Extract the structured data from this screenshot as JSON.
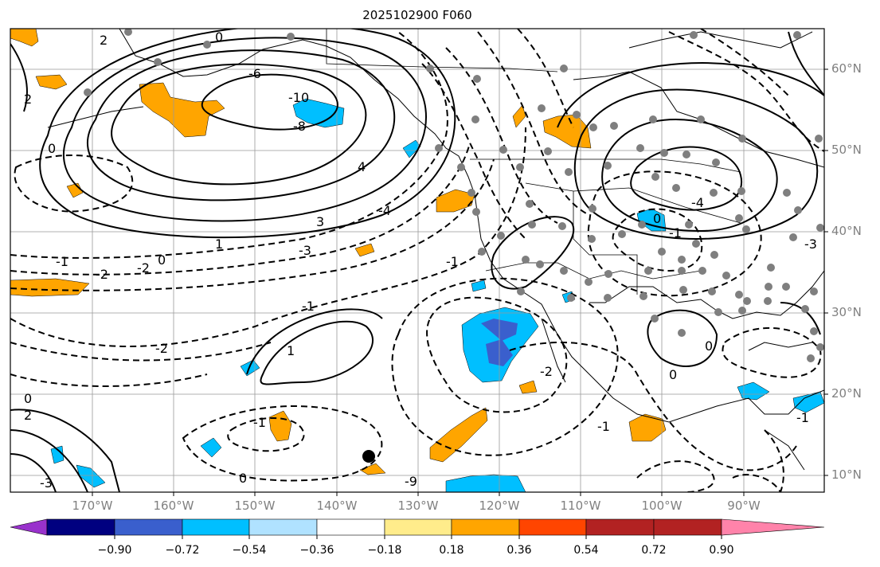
{
  "title": "2025102900 F060",
  "lat_labels": [
    "60°N",
    "50°N",
    "40°N",
    "30°N",
    "20°N",
    "10°N"
  ],
  "lon_labels": [
    "170°W",
    "160°W",
    "150°W",
    "140°W",
    "130°W",
    "120°W",
    "110°W",
    "100°W",
    "90°W"
  ],
  "contour_labels": [
    "0",
    "-1",
    "-2",
    "-3",
    "-4",
    "-6",
    "-8",
    "-9",
    "-10",
    "2",
    "4",
    "1",
    "0",
    "-2",
    "-1",
    "0",
    "1",
    "-1",
    "-4",
    "0",
    "-1",
    "0",
    "-3",
    "2",
    "3",
    "-1",
    "0",
    "-2",
    "0",
    "-1",
    "-1",
    "0",
    "2",
    "-2",
    "-3"
  ],
  "colorbar": {
    "tick_labels": [
      "−0.90",
      "−0.72",
      "−0.54",
      "−0.36",
      "−0.18",
      "0.18",
      "0.36",
      "0.54",
      "0.72",
      "0.90"
    ],
    "colors": [
      "#9932cc",
      "#000080",
      "#3a5fcd",
      "#00bfff",
      "#b0e2ff",
      "#ffffff",
      "#ffec8b",
      "#ffa500",
      "#ff4500",
      "#b22222",
      "#ff83aa"
    ]
  }
}
